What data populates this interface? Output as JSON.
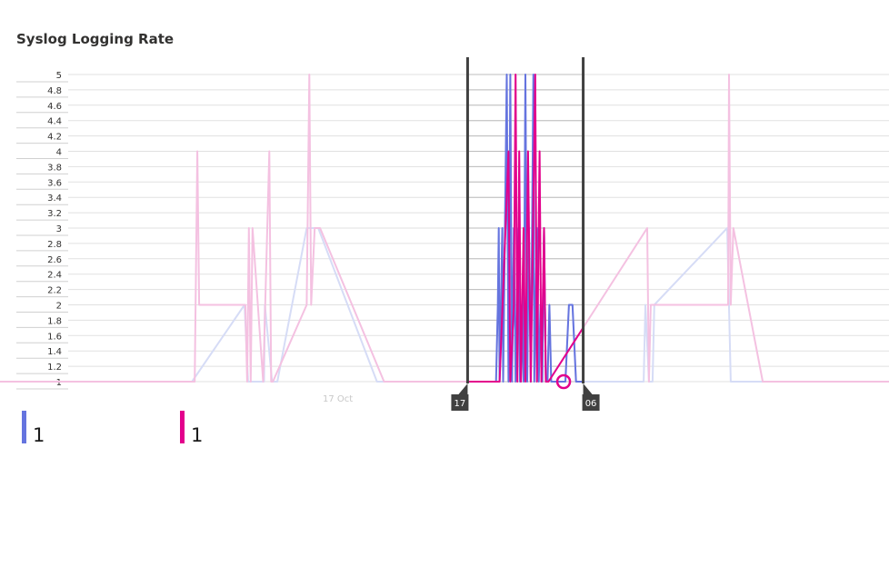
{
  "title": "Syslog Logging Rate",
  "colors": {
    "series_blue": "#6574df",
    "series_magenta": "#e3008c",
    "series_blue_faded": "#d6dcf6",
    "series_magenta_faded": "#f4c1e1",
    "selection_bar": "#404040",
    "grid": "#e1e1e1",
    "grid_selected": "#bdbdbd"
  },
  "brush": {
    "start_label": "17",
    "end_label": "06"
  },
  "legend": [
    {
      "value": "1",
      "color": "#6574df"
    },
    {
      "value": "1",
      "color": "#e3008c"
    }
  ],
  "chart_data": {
    "type": "line",
    "title": "Syslog Logging Rate",
    "xlabel": "",
    "ylabel": "",
    "ylim": [
      1,
      5
    ],
    "xlim": [
      0,
      100
    ],
    "x_tick_labels": [
      {
        "x": 38.0,
        "label": "17 Oct"
      }
    ],
    "y_ticks": [
      "5",
      "4.8",
      "4.6",
      "4.4",
      "4.2",
      "4",
      "3.8",
      "3.6",
      "3.4",
      "3.2",
      "3",
      "2.8",
      "2.6",
      "2.4",
      "2.2",
      "2",
      "1.8",
      "1.6",
      "1.4",
      "1.2",
      "1"
    ],
    "grid": true,
    "selection": {
      "x_start": 52.6,
      "x_end": 65.6
    },
    "series": [
      {
        "color": "#6574df",
        "points": [
          [
            0,
            1
          ],
          [
            21.6,
            1
          ],
          [
            27.5,
            2
          ],
          [
            27.9,
            1
          ],
          [
            29.7,
            1
          ],
          [
            29.8,
            2
          ],
          [
            30.6,
            1
          ],
          [
            31.2,
            1
          ],
          [
            34.5,
            3
          ],
          [
            35.8,
            3
          ],
          [
            42.4,
            1
          ],
          [
            53.4,
            1
          ],
          [
            55.8,
            1
          ],
          [
            56.0,
            2
          ],
          [
            56.1,
            3
          ],
          [
            56.2,
            1
          ],
          [
            56.5,
            3
          ],
          [
            56.6,
            1
          ],
          [
            57.0,
            5
          ],
          [
            57.2,
            1
          ],
          [
            57.4,
            5
          ],
          [
            57.6,
            1
          ],
          [
            57.8,
            3
          ],
          [
            58.0,
            1
          ],
          [
            58.3,
            3
          ],
          [
            58.5,
            1
          ],
          [
            58.7,
            2
          ],
          [
            58.9,
            1
          ],
          [
            59.1,
            5
          ],
          [
            59.3,
            1
          ],
          [
            59.5,
            3
          ],
          [
            59.7,
            1
          ],
          [
            60.0,
            5
          ],
          [
            60.1,
            1
          ],
          [
            60.4,
            3
          ],
          [
            60.6,
            1
          ],
          [
            60.8,
            2
          ],
          [
            61.0,
            1
          ],
          [
            61.2,
            3
          ],
          [
            61.4,
            1
          ],
          [
            61.6,
            1
          ],
          [
            61.8,
            2
          ],
          [
            62.0,
            1
          ],
          [
            63.6,
            1
          ],
          [
            64.0,
            2
          ],
          [
            64.4,
            2
          ],
          [
            64.8,
            1
          ],
          [
            66.7,
            1
          ],
          [
            72.4,
            1
          ],
          [
            72.6,
            2
          ],
          [
            73.0,
            1
          ],
          [
            73.4,
            1
          ],
          [
            73.6,
            2
          ],
          [
            81.8,
            3
          ],
          [
            82.2,
            1
          ],
          [
            85.6,
            1
          ],
          [
            100,
            1
          ]
        ]
      },
      {
        "color": "#e3008c",
        "points": [
          [
            0,
            1
          ],
          [
            21.9,
            1
          ],
          [
            22.2,
            4
          ],
          [
            22.4,
            2
          ],
          [
            27.6,
            2
          ],
          [
            27.8,
            1
          ],
          [
            28.0,
            3
          ],
          [
            28.2,
            1
          ],
          [
            28.4,
            3
          ],
          [
            29.6,
            1
          ],
          [
            30.3,
            4
          ],
          [
            30.5,
            1
          ],
          [
            30.7,
            1
          ],
          [
            34.5,
            2
          ],
          [
            34.8,
            5
          ],
          [
            35.0,
            2
          ],
          [
            35.4,
            3
          ],
          [
            36.0,
            3
          ],
          [
            43.2,
            1
          ],
          [
            53.4,
            1
          ],
          [
            56.2,
            1
          ],
          [
            57.2,
            4
          ],
          [
            57.4,
            1
          ],
          [
            57.8,
            2
          ],
          [
            58.0,
            5
          ],
          [
            58.2,
            1
          ],
          [
            58.4,
            4
          ],
          [
            58.6,
            1
          ],
          [
            58.9,
            3
          ],
          [
            59.1,
            1
          ],
          [
            59.4,
            4
          ],
          [
            59.7,
            1
          ],
          [
            60.2,
            5
          ],
          [
            60.4,
            1
          ],
          [
            60.7,
            4
          ],
          [
            60.9,
            1
          ],
          [
            61.2,
            3
          ],
          [
            61.4,
            1
          ],
          [
            61.7,
            1
          ],
          [
            72.8,
            3
          ],
          [
            73.0,
            1
          ],
          [
            73.2,
            2
          ],
          [
            81.9,
            2
          ],
          [
            82.0,
            5
          ],
          [
            82.2,
            2
          ],
          [
            82.5,
            3
          ],
          [
            85.8,
            1
          ],
          [
            100,
            1
          ]
        ]
      }
    ]
  }
}
